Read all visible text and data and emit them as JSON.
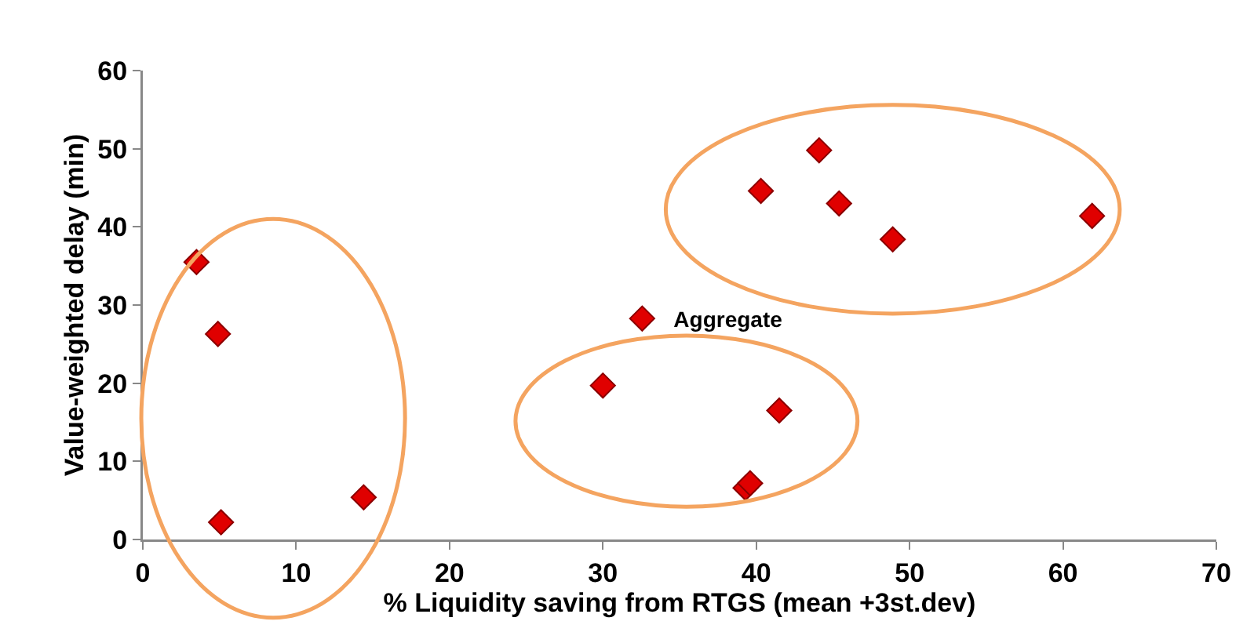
{
  "chart_data": {
    "type": "scatter",
    "xlabel": "% Liquidity saving from RTGS (mean +3st.dev)",
    "ylabel": "Value-weighted delay (min)",
    "xlim": [
      0,
      70
    ],
    "xticks": [
      0,
      10,
      20,
      30,
      40,
      50,
      60,
      70
    ],
    "ylim": [
      0,
      60
    ],
    "yticks": [
      0,
      10,
      20,
      30,
      40,
      50,
      60
    ],
    "grid": false,
    "legend": "center",
    "marker": "diamond",
    "series": [
      {
        "name": "Aggregate",
        "color": "#e00000",
        "x": [
          3.5,
          4.9,
          5.1,
          14.4,
          30,
          41.5,
          39.3,
          39.6,
          40.3,
          44.1,
          45.4,
          48.9,
          61.9
        ],
        "values": [
          35.5,
          26.3,
          2.2,
          5.4,
          19.7,
          16.5,
          6.6,
          7.2,
          44.6,
          49.8,
          43,
          38.4,
          41.4
        ]
      }
    ]
  }
}
